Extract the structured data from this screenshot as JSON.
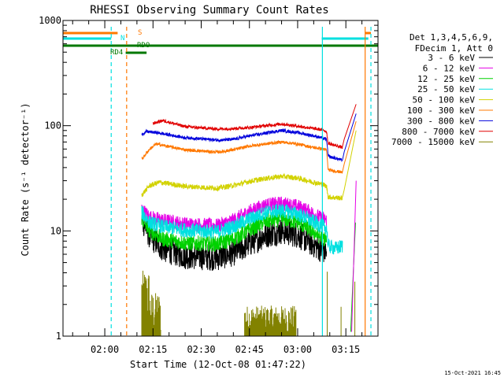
{
  "chart_data": {
    "type": "line",
    "title": "RHESSI Observing Summary Count Rates",
    "xlabel": "Start Time (12-Oct-08 01:47:22)",
    "ylabel": "Count Rate (s⁻¹ detector⁻¹)",
    "y_scale": "log",
    "ylim": [
      1,
      1000
    ],
    "xlim_minutes": [
      107,
      205
    ],
    "x_ticks": [
      {
        "t": 120,
        "label": "02:00"
      },
      {
        "t": 135,
        "label": "02:15"
      },
      {
        "t": 150,
        "label": "02:30"
      },
      {
        "t": 165,
        "label": "02:45"
      },
      {
        "t": 180,
        "label": "03:00"
      },
      {
        "t": 195,
        "label": "03:15"
      }
    ],
    "y_ticks": [
      {
        "v": 1,
        "label": "1"
      },
      {
        "v": 10,
        "label": "10"
      },
      {
        "v": 100,
        "label": "100"
      },
      {
        "v": 1000,
        "label": "1000"
      }
    ],
    "legend_header": [
      "Det 1,3,4,5,6,9,",
      "FDecim 1, Att 0"
    ],
    "legend_placement": "right",
    "series": [
      {
        "name": "3 - 6 keV",
        "color": "#000000",
        "noise": 0.26,
        "points": [
          [
            131.5,
            13
          ],
          [
            134,
            9
          ],
          [
            138,
            6.8
          ],
          [
            145,
            5.8
          ],
          [
            155,
            5.6
          ],
          [
            160,
            6.2
          ],
          [
            165,
            7.6
          ],
          [
            170,
            9.2
          ],
          [
            175,
            10
          ],
          [
            180,
            9.2
          ],
          [
            184,
            7.8
          ],
          [
            187,
            6.8
          ],
          [
            189,
            6.3
          ]
        ]
      },
      {
        "name": "6 - 12 keV",
        "color": "#e600e6",
        "noise": 0.14,
        "points": [
          [
            131.5,
            16
          ],
          [
            134,
            13.5
          ],
          [
            138,
            12.6
          ],
          [
            145,
            11.6
          ],
          [
            155,
            11.2
          ],
          [
            160,
            12.6
          ],
          [
            165,
            15.3
          ],
          [
            170,
            17.6
          ],
          [
            175,
            18.2
          ],
          [
            180,
            17.1
          ],
          [
            184,
            15.1
          ],
          [
            187,
            13.3
          ],
          [
            189,
            12.6
          ]
        ]
      },
      {
        "name": "12 - 25 keV",
        "color": "#00d200",
        "noise": 0.15,
        "points": [
          [
            131.5,
            13
          ],
          [
            134,
            10
          ],
          [
            138,
            8.4
          ],
          [
            145,
            7.7
          ],
          [
            155,
            7.5
          ],
          [
            160,
            8.4
          ],
          [
            165,
            10.2
          ],
          [
            170,
            12.3
          ],
          [
            175,
            13
          ],
          [
            180,
            12.1
          ],
          [
            184,
            10.2
          ],
          [
            187,
            8.8
          ],
          [
            189,
            8.2
          ]
        ]
      },
      {
        "name": "25 - 50 keV",
        "color": "#00e0e0",
        "noise": 0.14,
        "points": [
          [
            131.5,
            15
          ],
          [
            134,
            12
          ],
          [
            138,
            11
          ],
          [
            145,
            10.2
          ],
          [
            155,
            9.8
          ],
          [
            160,
            11
          ],
          [
            165,
            13
          ],
          [
            170,
            15
          ],
          [
            175,
            15.6
          ],
          [
            180,
            14.5
          ],
          [
            184,
            12.6
          ],
          [
            187,
            11.3
          ],
          [
            189,
            10.8
          ],
          [
            189.5,
            7.2
          ],
          [
            192,
            6.8
          ],
          [
            194,
            7.2
          ]
        ]
      },
      {
        "name": "50 - 100 keV",
        "color": "#d2d200",
        "noise": 0.05,
        "points": [
          [
            131.5,
            22
          ],
          [
            134,
            27
          ],
          [
            137,
            29
          ],
          [
            145,
            26.5
          ],
          [
            155,
            25.5
          ],
          [
            160,
            27
          ],
          [
            165,
            29.5
          ],
          [
            170,
            31.5
          ],
          [
            175,
            33
          ],
          [
            180,
            31.8
          ],
          [
            185,
            29
          ],
          [
            188,
            27.5
          ],
          [
            189,
            26.5
          ],
          [
            189.5,
            21
          ],
          [
            194,
            20.5
          ]
        ]
      },
      {
        "name": "100 - 300 keV",
        "color": "#ff7800",
        "noise": 0.03,
        "points": [
          [
            131.5,
            48
          ],
          [
            134,
            60
          ],
          [
            136,
            67
          ],
          [
            145,
            59
          ],
          [
            155,
            56
          ],
          [
            160,
            59
          ],
          [
            165,
            64
          ],
          [
            170,
            67
          ],
          [
            175,
            70
          ],
          [
            180,
            67
          ],
          [
            185,
            62
          ],
          [
            188,
            60
          ],
          [
            189,
            58
          ],
          [
            189.5,
            38
          ],
          [
            194,
            36
          ]
        ]
      },
      {
        "name": "300 - 800 keV",
        "color": "#0000dc",
        "noise": 0.03,
        "points": [
          [
            131.5,
            82
          ],
          [
            133,
            88
          ],
          [
            136,
            86
          ],
          [
            145,
            77
          ],
          [
            155,
            73
          ],
          [
            160,
            74
          ],
          [
            165,
            80
          ],
          [
            170,
            85
          ],
          [
            175,
            90
          ],
          [
            180,
            86
          ],
          [
            185,
            80
          ],
          [
            188,
            76
          ],
          [
            189,
            74
          ],
          [
            189.5,
            51
          ],
          [
            194,
            47
          ]
        ]
      },
      {
        "name": "800 - 7000 keV",
        "color": "#e10000",
        "noise": 0.03,
        "points": [
          [
            135,
            105
          ],
          [
            138,
            112
          ],
          [
            145,
            98
          ],
          [
            155,
            93
          ],
          [
            160,
            94
          ],
          [
            165,
            96
          ],
          [
            170,
            100
          ],
          [
            175,
            104
          ],
          [
            180,
            99
          ],
          [
            185,
            94
          ],
          [
            188,
            91
          ],
          [
            189,
            88
          ],
          [
            189.5,
            68
          ],
          [
            194,
            62
          ]
        ]
      },
      {
        "name": "7000 - 15000 keV",
        "color": "#828200",
        "noise": 0,
        "points": []
      }
    ],
    "annotations": [
      {
        "label": "S",
        "color": "#ff7800"
      },
      {
        "label": "N",
        "color": "#00e0e0"
      },
      {
        "label": "RD4",
        "color": "#007800"
      },
      {
        "label": "RDO",
        "color": "#007800"
      }
    ]
  },
  "footer": {
    "timestamp": "15-Oct-2021 16:45"
  }
}
